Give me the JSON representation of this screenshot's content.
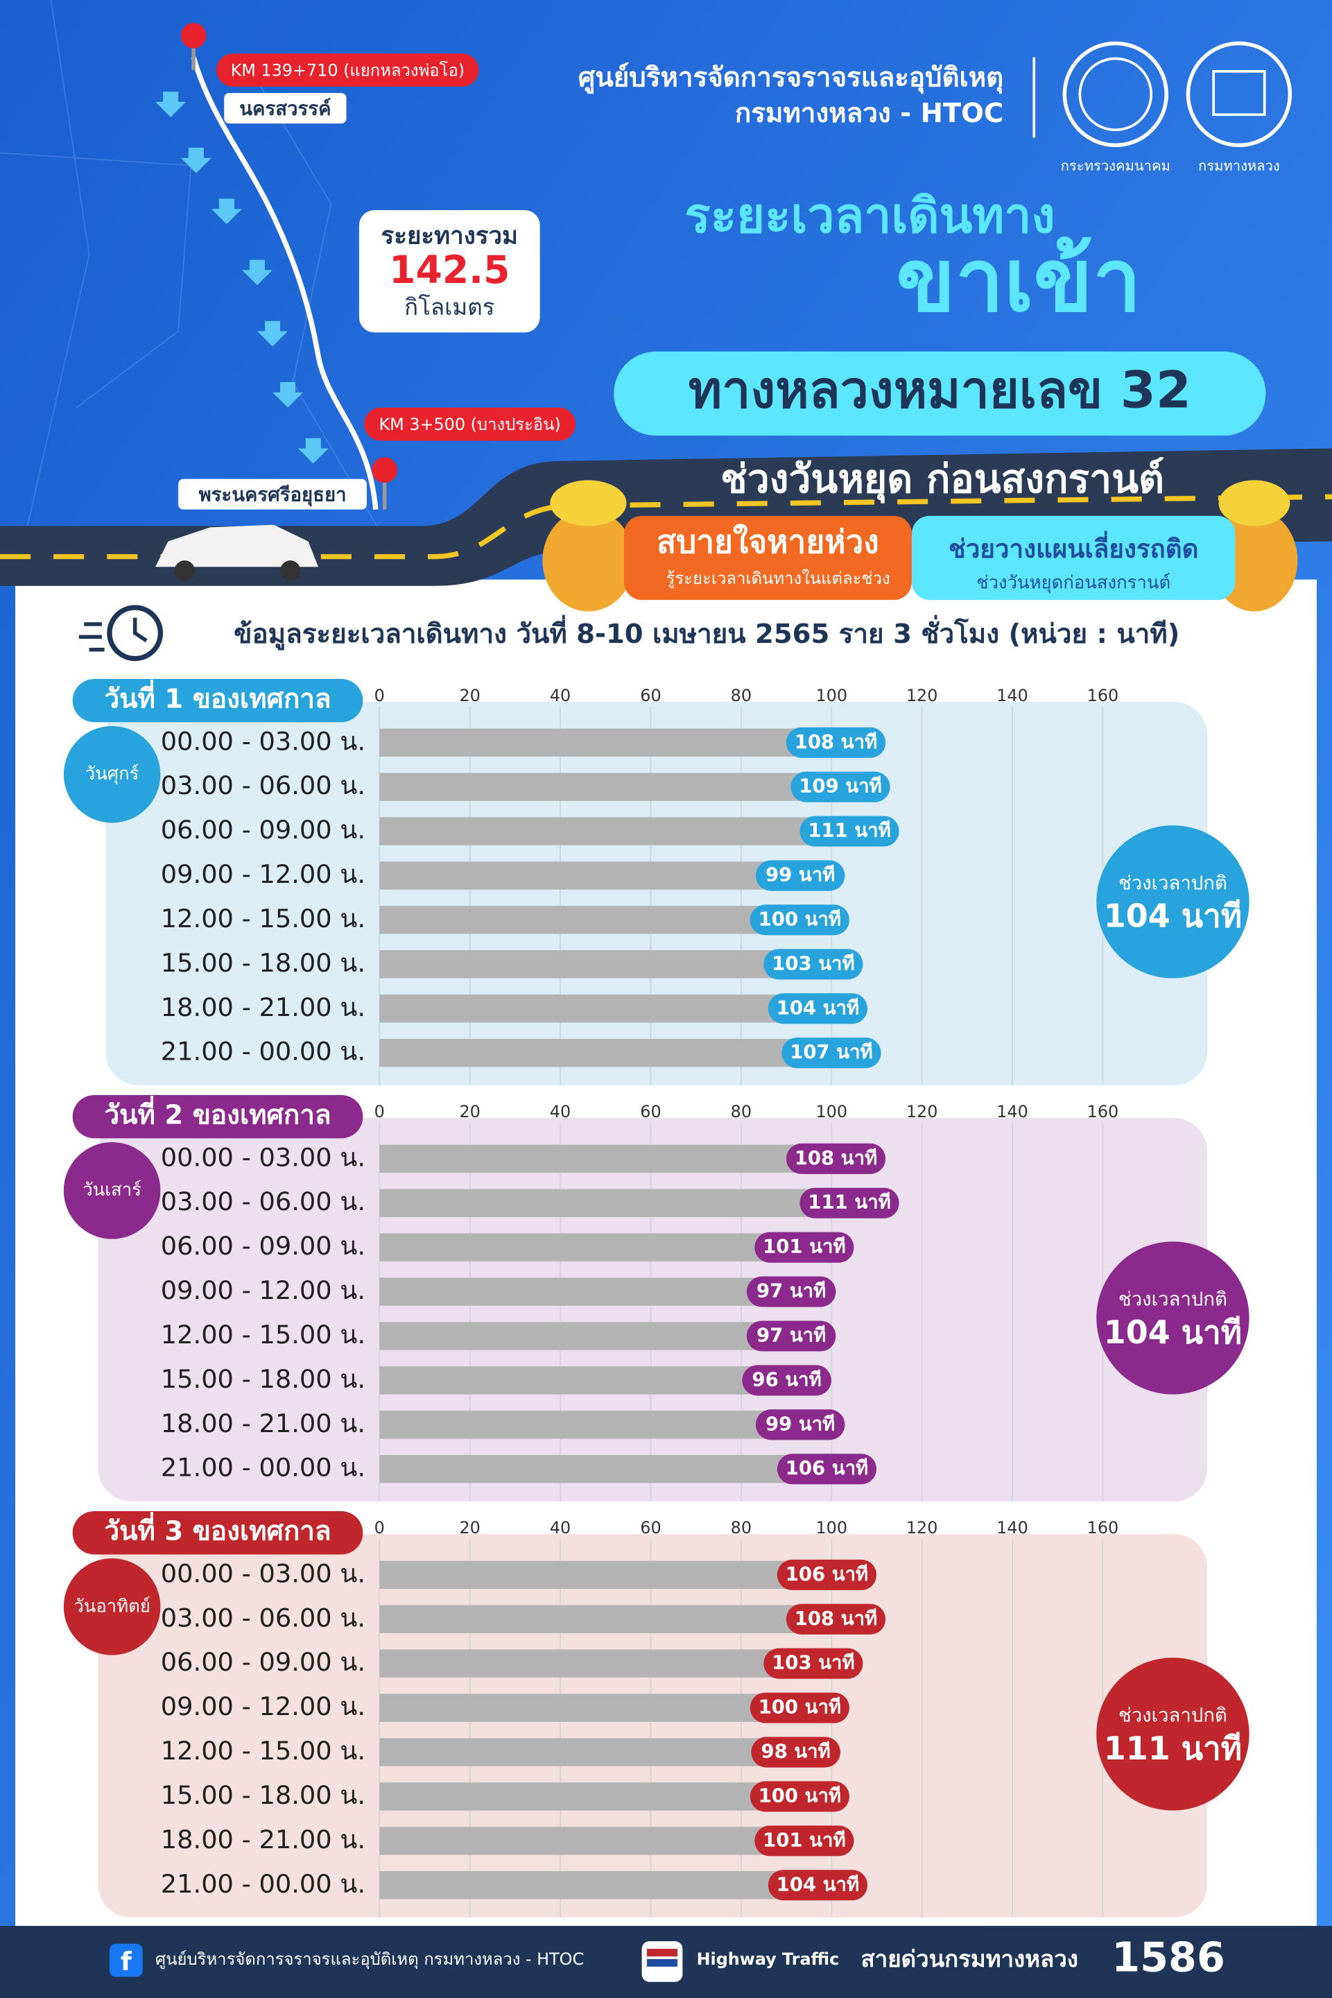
{
  "header": {
    "org_line1": "ศูนย์บริหารจัดการจราจรและอุบัติเหตุ",
    "org_line2": "กรมทางหลวง - HTOC",
    "logo1_caption": "กระทรวงคมนาคม",
    "logo2_caption": "กรมทางหลวง"
  },
  "map": {
    "start_km": "KM 139+710 (แยกหลวงพ่อโอ)",
    "start_city": "นครสวรรค์",
    "end_km": "KM 3+500 (บางประอิน)",
    "end_city": "พระนครศรีอยุธยา",
    "distance_label": "ระยะทางรวม",
    "distance": "142.5",
    "distance_unit": "กิโลเมตร"
  },
  "headline": {
    "line1": "ระยะเวลาเดินทาง",
    "line2": "ขาเข้า",
    "route": "ทางหลวงหมายเลข 32",
    "period": "ช่วงวันหยุด ก่อนสงกรานต์",
    "tag1_title": "สบายใจหายห่วง",
    "tag1_sub": "รู้ระยะเวลาเดินทางในแต่ละช่วง",
    "tag2_title": "ช่วยวางแผนเลี่ยงรถติด",
    "tag2_sub": "ช่วงวันหยุดก่อนสงกรานต์",
    "info": "ข้อมูลระยะเวลาเดินทาง วันที่ 8-10 เมษายน 2565 ราย 3 ชั่วโมง (หน่วย : นาที)"
  },
  "chart_data": [
    {
      "type": "bar",
      "title": "วันที่ 1 ของเทศกาล",
      "day": "วันศุกร์",
      "categories": [
        "00.00 - 03.00 น.",
        "03.00 - 06.00 น.",
        "06.00 - 09.00 น.",
        "09.00 - 12.00 น.",
        "12.00 - 15.00 น.",
        "15.00 - 18.00 น.",
        "18.00 - 21.00 น.",
        "21.00 - 00.00 น."
      ],
      "values": [
        108,
        109,
        111,
        99,
        100,
        103,
        104,
        107
      ],
      "value_labels": [
        "108 นาที",
        "109 นาที",
        "111 นาที",
        "99 นาที",
        "100 นาที",
        "103 นาที",
        "104 นาที",
        "107 นาที"
      ],
      "color": "#29a3dc",
      "panel_color": "#dcedf6",
      "bar_color": "#b3b3b3",
      "xlim": [
        0,
        160
      ],
      "xticks": [
        0,
        20,
        40,
        60,
        80,
        100,
        120,
        140,
        160
      ],
      "grid": true,
      "normal_label": "ช่วงเวลาปกติ",
      "normal_value": "104 นาที"
    },
    {
      "type": "bar",
      "title": "วันที่ 2 ของเทศกาล",
      "day": "วันเสาร์",
      "categories": [
        "00.00 - 03.00 น.",
        "03.00 - 06.00 น.",
        "06.00 - 09.00 น.",
        "09.00 - 12.00 น.",
        "12.00 - 15.00 น.",
        "15.00 - 18.00 น.",
        "18.00 - 21.00 น.",
        "21.00 - 00.00 น."
      ],
      "values": [
        108,
        111,
        101,
        97,
        97,
        96,
        99,
        106
      ],
      "value_labels": [
        "108 นาที",
        "111 นาที",
        "101 นาที",
        "97 นาที",
        "97 นาที",
        "96 นาที",
        "99 นาที",
        "106 นาที"
      ],
      "color": "#8b2a8c",
      "panel_color": "#ede0ee",
      "bar_color": "#b3b3b3",
      "xlim": [
        0,
        160
      ],
      "xticks": [
        0,
        20,
        40,
        60,
        80,
        100,
        120,
        140,
        160
      ],
      "grid": true,
      "normal_label": "ช่วงเวลาปกติ",
      "normal_value": "104 นาที"
    },
    {
      "type": "bar",
      "title": "วันที่ 3 ของเทศกาล",
      "day": "วันอาทิตย์",
      "categories": [
        "00.00 - 03.00 น.",
        "03.00 - 06.00 น.",
        "06.00 - 09.00 น.",
        "09.00 - 12.00 น.",
        "12.00 - 15.00 น.",
        "15.00 - 18.00 น.",
        "18.00 - 21.00 น.",
        "21.00 - 00.00 น."
      ],
      "values": [
        106,
        108,
        103,
        100,
        98,
        100,
        101,
        104
      ],
      "value_labels": [
        "106 นาที",
        "108 นาที",
        "103 นาที",
        "100 นาที",
        "98 นาที",
        "100 นาที",
        "101 นาที",
        "104 นาที"
      ],
      "color": "#c0272d",
      "panel_color": "#f5e0e0",
      "bar_color": "#b3b3b3",
      "xlim": [
        0,
        160
      ],
      "xticks": [
        0,
        20,
        40,
        60,
        80,
        100,
        120,
        140,
        160
      ],
      "grid": true,
      "normal_label": "ช่วงเวลาปกติ",
      "normal_value": "111 นาที"
    }
  ],
  "footer": {
    "facebook": "ศูนย์บริหารจัดการจราจรและอุบัติเหตุ กรมทางหลวง - HTOC",
    "app": "Highway Traffic",
    "hotline_label": "สายด่วนกรมทางหลวง",
    "hotline": "1586"
  }
}
